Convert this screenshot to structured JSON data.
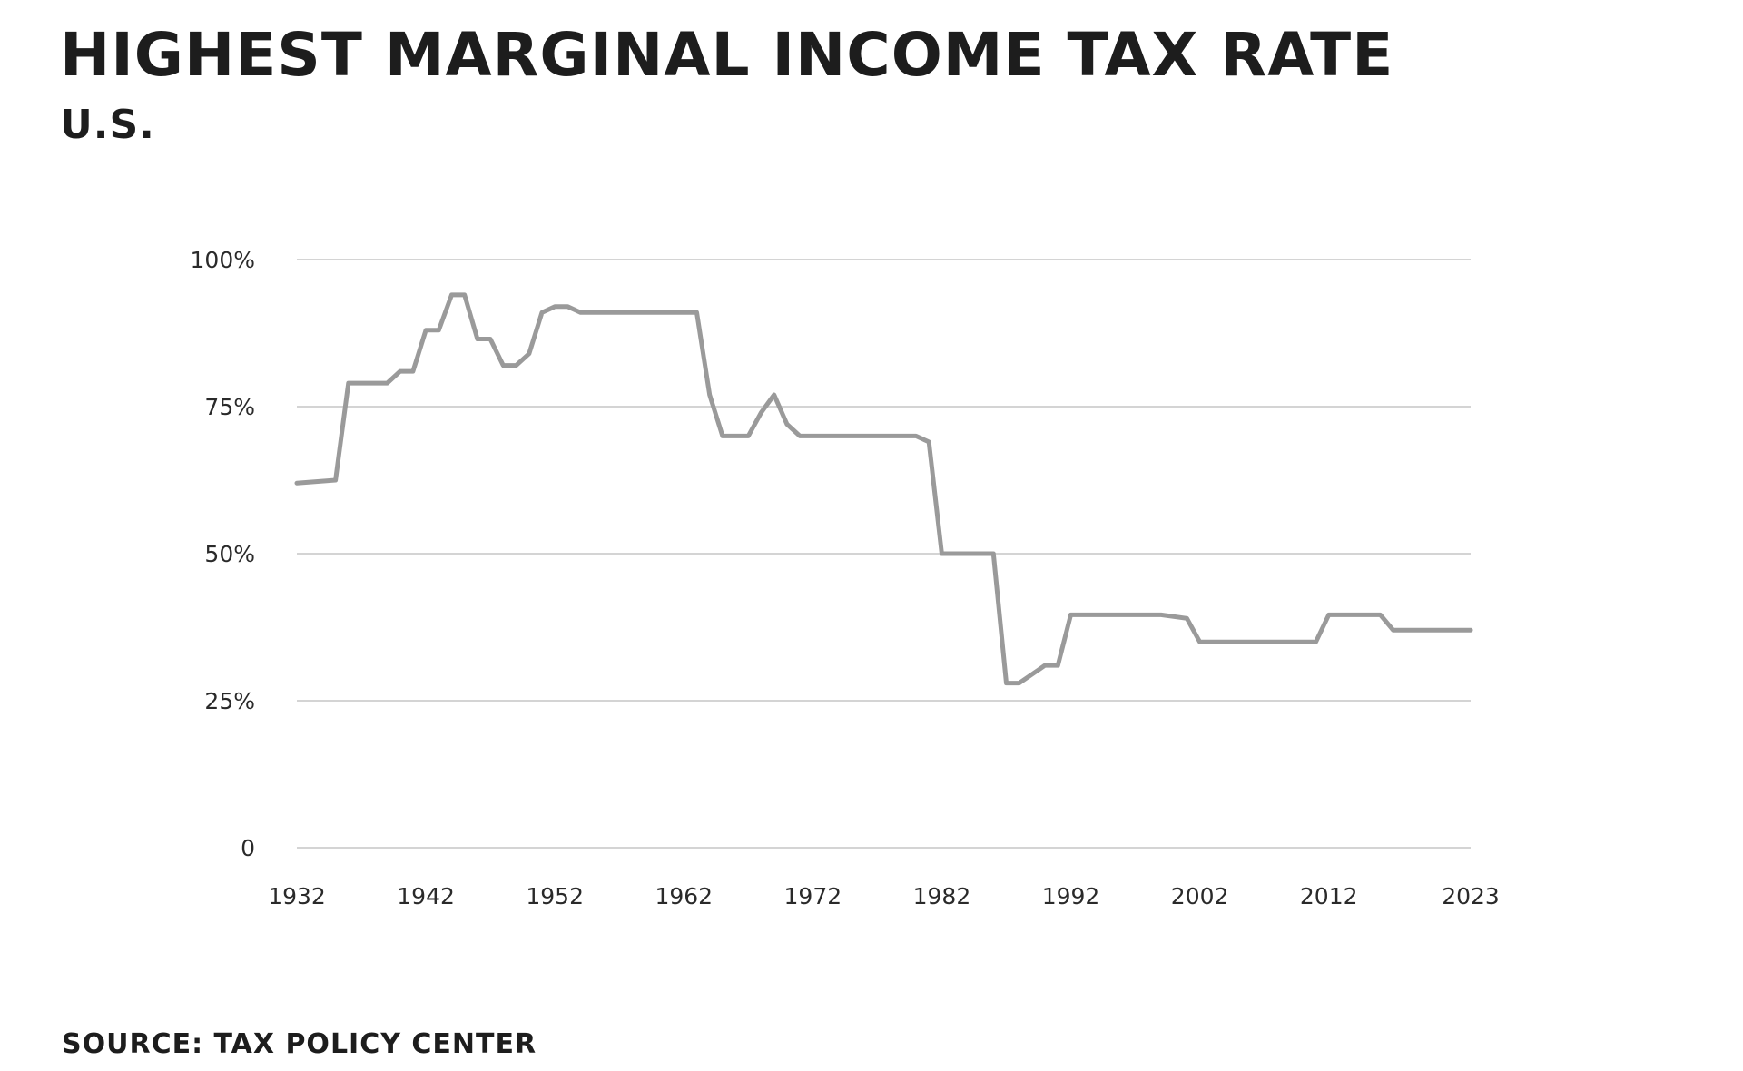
{
  "title": "HIGHEST MARGINAL INCOME TAX RATE",
  "subtitle": "U.S.",
  "source": "SOURCE: TAX POLICY CENTER",
  "colors": {
    "line": "#9a9a9a",
    "grid": "#d4d4d4",
    "text": "#1d1d1d"
  },
  "chart_data": {
    "type": "line",
    "title": "HIGHEST MARGINAL INCOME TAX RATE",
    "subtitle": "U.S.",
    "xlabel": "",
    "ylabel": "",
    "xlim": [
      1932,
      2023
    ],
    "ylim": [
      0,
      100
    ],
    "grid": true,
    "x_ticks": [
      1932,
      1942,
      1952,
      1962,
      1972,
      1982,
      1992,
      2002,
      2012,
      2023
    ],
    "x_tick_labels": [
      "1932",
      "1942",
      "1952",
      "1962",
      "1972",
      "1982",
      "1992",
      "2002",
      "2012",
      "2023"
    ],
    "y_ticks": [
      0,
      25,
      50,
      75,
      100
    ],
    "y_tick_labels": [
      "0",
      "25%",
      "50%",
      "75%",
      "100%"
    ],
    "series": [
      {
        "x": [
          1932,
          1935,
          1936,
          1939,
          1940,
          1941,
          1942,
          1943,
          1944,
          1945,
          1946,
          1947,
          1948,
          1949,
          1950,
          1951,
          1952,
          1953,
          1954,
          1963,
          1964,
          1965,
          1967,
          1968,
          1969,
          1970,
          1971,
          1980,
          1981,
          1982,
          1986,
          1987,
          1988,
          1990,
          1991,
          1992,
          1999,
          2001,
          2002,
          2011,
          2012,
          2016,
          2017,
          2023
        ],
        "y": [
          62,
          62.5,
          79,
          79,
          81,
          81,
          88,
          88,
          94,
          94,
          86.5,
          86.5,
          82,
          82,
          84,
          91,
          92,
          92,
          91,
          91,
          77,
          70,
          70,
          74,
          77,
          72,
          70,
          70,
          69,
          50,
          50,
          28,
          28,
          31,
          31,
          39.6,
          39.6,
          39,
          35,
          35,
          39.6,
          39.6,
          37,
          37
        ]
      }
    ]
  }
}
